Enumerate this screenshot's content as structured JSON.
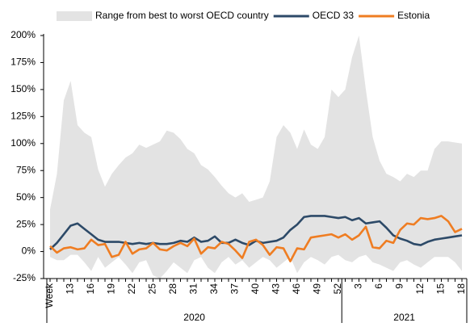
{
  "chart_data": {
    "type": "line",
    "categories": [
      "Week",
      null,
      null,
      "13",
      null,
      null,
      "16",
      null,
      null,
      "19",
      null,
      null,
      "22",
      null,
      null,
      "25",
      null,
      null,
      "28",
      null,
      null,
      "31",
      null,
      null,
      "34",
      null,
      null,
      "37",
      null,
      null,
      "40",
      null,
      null,
      "43",
      null,
      null,
      "46",
      null,
      null,
      "49",
      null,
      null,
      "52",
      null,
      null,
      "3",
      null,
      null,
      "6",
      null,
      null,
      "9",
      null,
      null,
      "12",
      null,
      null,
      "15",
      null,
      null,
      "18"
    ],
    "x_groups": [
      {
        "label": "2020",
        "start": 0
      },
      {
        "label": "2021",
        "start": 43
      }
    ],
    "series": [
      {
        "name": "Range from best to worst OECD country",
        "color": "#e3e3e3",
        "upper": [
          39,
          72,
          140,
          158,
          117,
          110,
          106,
          76,
          60,
          72,
          80,
          87,
          91,
          99,
          96,
          99,
          102,
          112,
          110,
          104,
          95,
          91,
          80,
          76,
          69,
          61,
          54,
          50,
          54,
          46,
          48,
          50,
          65,
          106,
          117,
          110,
          95,
          113,
          99,
          95,
          106,
          150,
          143,
          150,
          180,
          200,
          150,
          106,
          84,
          72,
          69,
          65,
          72,
          69,
          75,
          75,
          95,
          102,
          102,
          101,
          100
        ],
        "lower": [
          -5,
          -8,
          -8,
          -3,
          -3,
          -10,
          -18,
          -5,
          -15,
          -10,
          -5,
          -12,
          -20,
          -10,
          -8,
          -22,
          -25,
          -18,
          -10,
          -15,
          -20,
          -8,
          -5,
          -15,
          -20,
          -10,
          -5,
          -12,
          -8,
          -15,
          -10,
          -5,
          -8,
          -15,
          -10,
          -5,
          -20,
          -10,
          -5,
          -8,
          -12,
          -5,
          -3,
          -8,
          -10,
          -5,
          -3,
          -10,
          -12,
          -15,
          -18,
          -10,
          -8,
          -12,
          -15,
          -10,
          -5,
          -5,
          -5,
          -10,
          -18
        ]
      },
      {
        "name": "OECD 33",
        "color": "#2d4a68",
        "values": [
          2,
          8,
          16,
          24,
          26,
          21,
          16,
          11,
          9,
          9,
          9,
          8,
          7,
          8,
          7,
          8,
          7,
          7,
          8,
          10,
          9,
          13,
          9,
          10,
          14,
          8,
          8,
          11,
          8,
          6,
          10,
          8,
          9,
          10,
          13,
          20,
          25,
          32,
          33,
          33,
          33,
          32,
          31,
          32,
          29,
          31,
          26,
          27,
          28,
          22,
          15,
          12,
          10,
          7,
          6,
          9,
          11,
          12,
          13,
          14,
          15
        ]
      },
      {
        "name": "Estonia",
        "color": "#ef7d22",
        "values": [
          5,
          -1,
          3,
          4,
          2,
          3,
          11,
          6,
          7,
          -5,
          -3,
          9,
          -2,
          2,
          3,
          8,
          2,
          1,
          5,
          8,
          5,
          12,
          -2,
          4,
          3,
          9,
          7,
          1,
          -6,
          9,
          11,
          6,
          -3,
          4,
          3,
          -9,
          3,
          2,
          13,
          14,
          15,
          16,
          13,
          16,
          11,
          15,
          23,
          4,
          3,
          10,
          8,
          20,
          26,
          25,
          31,
          30,
          31,
          33,
          28,
          18,
          21
        ]
      }
    ],
    "ylim": [
      -25,
      200
    ],
    "yticks": [
      {
        "value": -25,
        "label": "-25%"
      },
      {
        "value": 0,
        "label": "0%"
      },
      {
        "value": 25,
        "label": "25%"
      },
      {
        "value": 50,
        "label": "50%"
      },
      {
        "value": 75,
        "label": "75%"
      },
      {
        "value": 100,
        "label": "100%"
      },
      {
        "value": 125,
        "label": "125%"
      },
      {
        "value": 150,
        "label": "150%"
      },
      {
        "value": 175,
        "label": "175%"
      },
      {
        "value": 200,
        "label": "200%"
      }
    ],
    "grid": false
  }
}
